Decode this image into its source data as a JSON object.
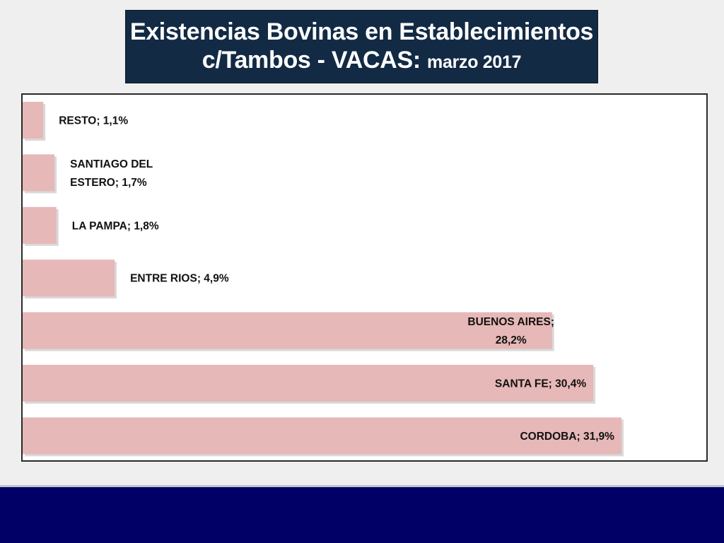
{
  "title": {
    "line1": "Existencias Bovinas en Establecimientos",
    "line2_main": "c/Tambos - VACAS:",
    "line2_small": "marzo 2017"
  },
  "colors": {
    "bar": "#e6b8b7",
    "title_bg": "#122a44",
    "footer": "#000066"
  },
  "chart_data": {
    "type": "bar",
    "orientation": "horizontal",
    "categories": [
      "RESTO",
      "SANTIAGO DEL ESTERO",
      "LA PAMPA",
      "ENTRE RIOS",
      "BUENOS AIRES",
      "SANTA FE",
      "CORDOBA"
    ],
    "values": [
      1.1,
      1.7,
      1.8,
      4.9,
      28.2,
      30.4,
      31.9
    ],
    "data_labels": [
      [
        "RESTO;  1,1%"
      ],
      [
        "SANTIAGO DEL",
        "ESTERO; 1,7%"
      ],
      [
        "LA PAMPA; 1,8%"
      ],
      [
        "ENTRE  RIOS; 4,9%"
      ],
      [
        "BUENOS AIRES;",
        "28,2%"
      ],
      [
        "SANTA FE; 30,4%"
      ],
      [
        "CORDOBA;  31,9%"
      ]
    ],
    "label_placement": [
      "outside",
      "outside",
      "outside",
      "outside",
      "inside",
      "inside",
      "inside"
    ],
    "xlim": [
      0,
      35
    ],
    "grid": false,
    "legend": "none",
    "unit": "%"
  }
}
